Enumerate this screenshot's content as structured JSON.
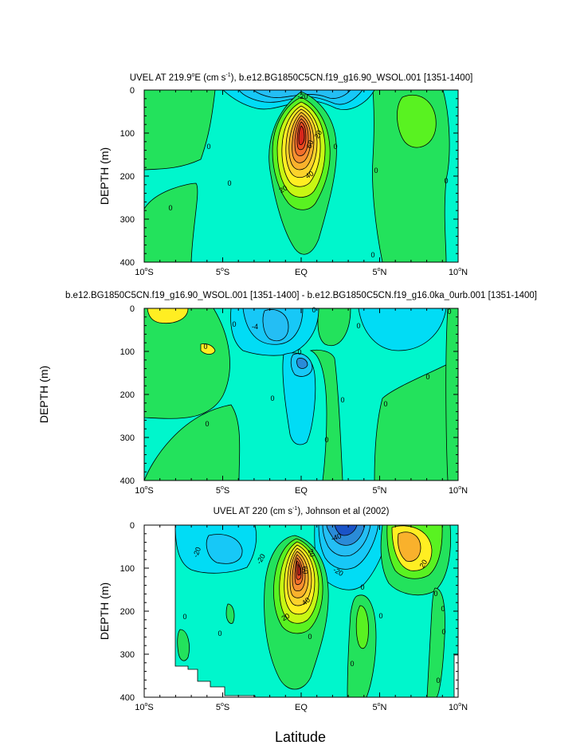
{
  "figure": {
    "ylabel": "DEPTH (m)",
    "xlabel": "Latitude"
  },
  "chart_data": [
    {
      "type": "contour",
      "title": "UVEL AT 219.9°E (cm s-1), b.e12.BG1850C5CN.f19_g16.90_WSOL.001 [1351-1400]",
      "title_parts": {
        "a": "UVEL AT 219.9",
        "deg": "o",
        "b": "E (cm s",
        "sup": "-1",
        "c": "), b.e12.BG1850C5CN.f19_g16.90_WSOL.001 [1351-1400]"
      },
      "ylabel": "DEPTH (m)",
      "xlim": [
        -10,
        10
      ],
      "ylim": [
        400,
        0
      ],
      "xticks": [
        {
          "v": -10,
          "n": "10",
          "h": "S"
        },
        {
          "v": -5,
          "n": "5",
          "h": "S"
        },
        {
          "v": 0,
          "n": "EQ",
          "h": ""
        },
        {
          "v": 5,
          "n": "5",
          "h": "N"
        },
        {
          "v": 10,
          "n": "10",
          "h": "N"
        }
      ],
      "yticks": [
        0,
        100,
        200,
        300,
        400
      ],
      "core": {
        "lat": 0,
        "depth": 130,
        "max_value": 60
      },
      "contour_labels": [
        "-20",
        "20",
        "60",
        "40",
        "20",
        "0",
        "0",
        "0",
        "0",
        "0",
        "0",
        "0"
      ]
    },
    {
      "type": "contour",
      "title": "b.e12.BG1850C5CN.f19_g16.90_WSOL.001 [1351-1400] - b.e12.BG1850C5CN.f19_g16.0ka_0urb.001 [1351-1400]",
      "ylabel": "",
      "xlim": [
        -10,
        10
      ],
      "ylim": [
        400,
        0
      ],
      "xticks": [
        {
          "v": -10,
          "n": "10",
          "h": "S"
        },
        {
          "v": -5,
          "n": "5",
          "h": "S"
        },
        {
          "v": 0,
          "n": "EQ",
          "h": ""
        },
        {
          "v": 5,
          "n": "5",
          "h": "N"
        },
        {
          "v": 10,
          "n": "10",
          "h": "N"
        }
      ],
      "yticks": [
        0,
        100,
        200,
        300,
        400
      ],
      "contour_labels": [
        "-4",
        "0",
        "0",
        "0",
        "0",
        "0",
        "0",
        "0",
        "0",
        "0",
        "0",
        "0",
        "0"
      ]
    },
    {
      "type": "contour",
      "title": "UVEL AT 220 (cm s-1), Johnson et al (2002)",
      "title_parts": {
        "a": "UVEL AT 220 (cm s",
        "sup": "-1",
        "c": "), Johnson et al (2002)"
      },
      "ylabel": "DEPTH (m)",
      "xlim": [
        -10,
        10
      ],
      "ylim": [
        400,
        0
      ],
      "xticks": [
        {
          "v": -10,
          "n": "10",
          "h": "S"
        },
        {
          "v": -5,
          "n": "5",
          "h": "S"
        },
        {
          "v": 0,
          "n": "EQ",
          "h": ""
        },
        {
          "v": 5,
          "n": "5",
          "h": "N"
        },
        {
          "v": 10,
          "n": "10",
          "h": "N"
        }
      ],
      "yticks": [
        0,
        100,
        200,
        300,
        400
      ],
      "core": {
        "lat": 0,
        "depth": 110,
        "max_value": 60
      },
      "contour_labels": [
        "-20",
        "-20",
        "-40",
        "-20",
        "20",
        "60",
        "40",
        "20",
        "20",
        "0",
        "0",
        "0",
        "0",
        "0",
        "0",
        "0",
        "0",
        "0",
        "0"
      ]
    }
  ]
}
